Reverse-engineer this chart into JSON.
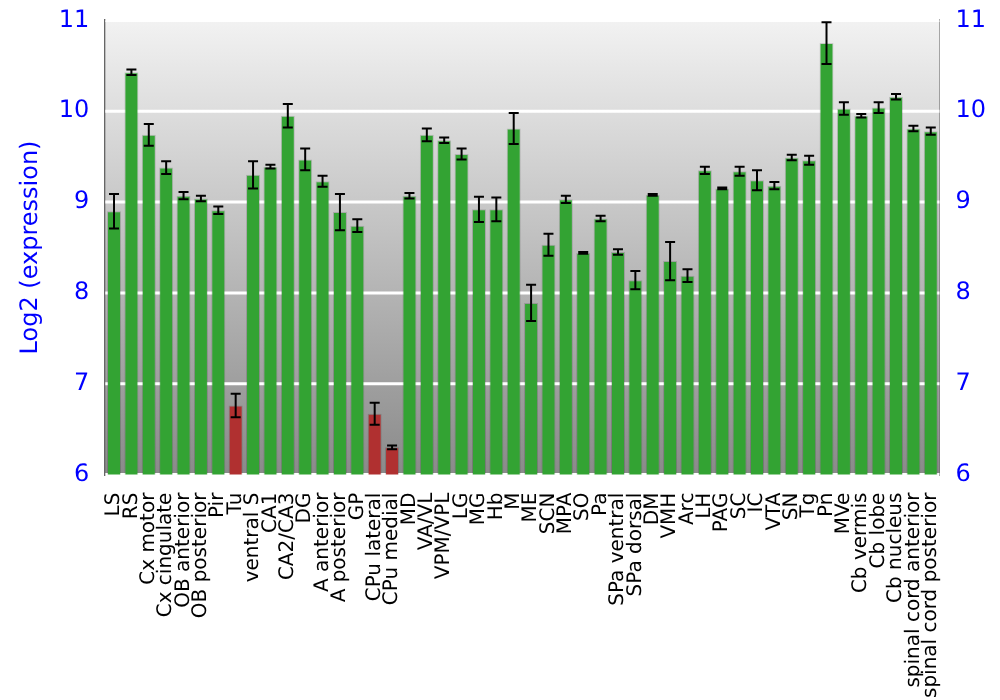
{
  "chart_data": {
    "type": "bar",
    "ylabel": "Log2 (expression)",
    "categories": [
      "LS",
      "RS",
      "Cx motor",
      "Cx cingulate",
      "OB anterior",
      "OB posterior",
      "Pir",
      "Tu",
      "ventral S",
      "CA1",
      "CA2/CA3",
      "DG",
      "A anterior",
      "A posterior",
      "GP",
      "CPu lateral",
      "CPu medial",
      "MD",
      "VA/VL",
      "VPM/VPL",
      "LG",
      "MG",
      "Hb",
      "M",
      "ME",
      "SCN",
      "MPA",
      "SO",
      "Pa",
      "SPa ventral",
      "SPa dorsal",
      "DM",
      "VMH",
      "Arc",
      "LH",
      "PAG",
      "SC",
      "IC",
      "VTA",
      "SN",
      "Tg",
      "Pn",
      "MVe",
      "Cb vermis",
      "Cb lobe",
      "Cb nucleus",
      "spinal cord anterior",
      "spinal cord posterior"
    ],
    "values": [
      8.9,
      10.43,
      9.74,
      9.38,
      9.07,
      9.04,
      8.91,
      6.76,
      9.3,
      9.39,
      9.95,
      9.47,
      9.23,
      8.89,
      8.74,
      6.67,
      6.3,
      9.07,
      9.74,
      9.68,
      9.53,
      8.92,
      8.92,
      9.81,
      7.89,
      8.53,
      9.03,
      8.44,
      8.82,
      8.45,
      8.14,
      9.08,
      8.35,
      8.19,
      9.35,
      9.15,
      9.34,
      9.24,
      9.18,
      9.49,
      9.46,
      10.75,
      10.03,
      9.95,
      10.04,
      10.16,
      9.81,
      9.78
    ],
    "errors": [
      0.19,
      0.03,
      0.12,
      0.07,
      0.04,
      0.03,
      0.04,
      0.13,
      0.15,
      0.02,
      0.13,
      0.12,
      0.06,
      0.2,
      0.07,
      0.12,
      0.02,
      0.03,
      0.07,
      0.03,
      0.06,
      0.14,
      0.13,
      0.17,
      0.2,
      0.12,
      0.04,
      0.01,
      0.03,
      0.03,
      0.1,
      0.01,
      0.21,
      0.07,
      0.04,
      0.01,
      0.05,
      0.11,
      0.04,
      0.03,
      0.05,
      0.23,
      0.07,
      0.02,
      0.06,
      0.03,
      0.03,
      0.04
    ],
    "colors": [
      "#33a333",
      "#33a333",
      "#33a333",
      "#33a333",
      "#33a333",
      "#33a333",
      "#33a333",
      "#b03030",
      "#33a333",
      "#33a333",
      "#33a333",
      "#33a333",
      "#33a333",
      "#33a333",
      "#33a333",
      "#b03030",
      "#b03030",
      "#33a333",
      "#33a333",
      "#33a333",
      "#33a333",
      "#33a333",
      "#33a333",
      "#33a333",
      "#33a333",
      "#33a333",
      "#33a333",
      "#33a333",
      "#33a333",
      "#33a333",
      "#33a333",
      "#33a333",
      "#33a333",
      "#33a333",
      "#33a333",
      "#33a333",
      "#33a333",
      "#33a333",
      "#33a333",
      "#33a333",
      "#33a333",
      "#33a333",
      "#33a333",
      "#33a333",
      "#33a333",
      "#33a333",
      "#33a333",
      "#33a333"
    ],
    "ylim": [
      6,
      11
    ],
    "yticks": [
      6,
      7,
      8,
      9,
      10,
      11
    ],
    "y2lim": [
      6,
      11
    ],
    "y2ticks": [
      6,
      7,
      8,
      9,
      10,
      11
    ],
    "grid": "y",
    "legend": false
  }
}
